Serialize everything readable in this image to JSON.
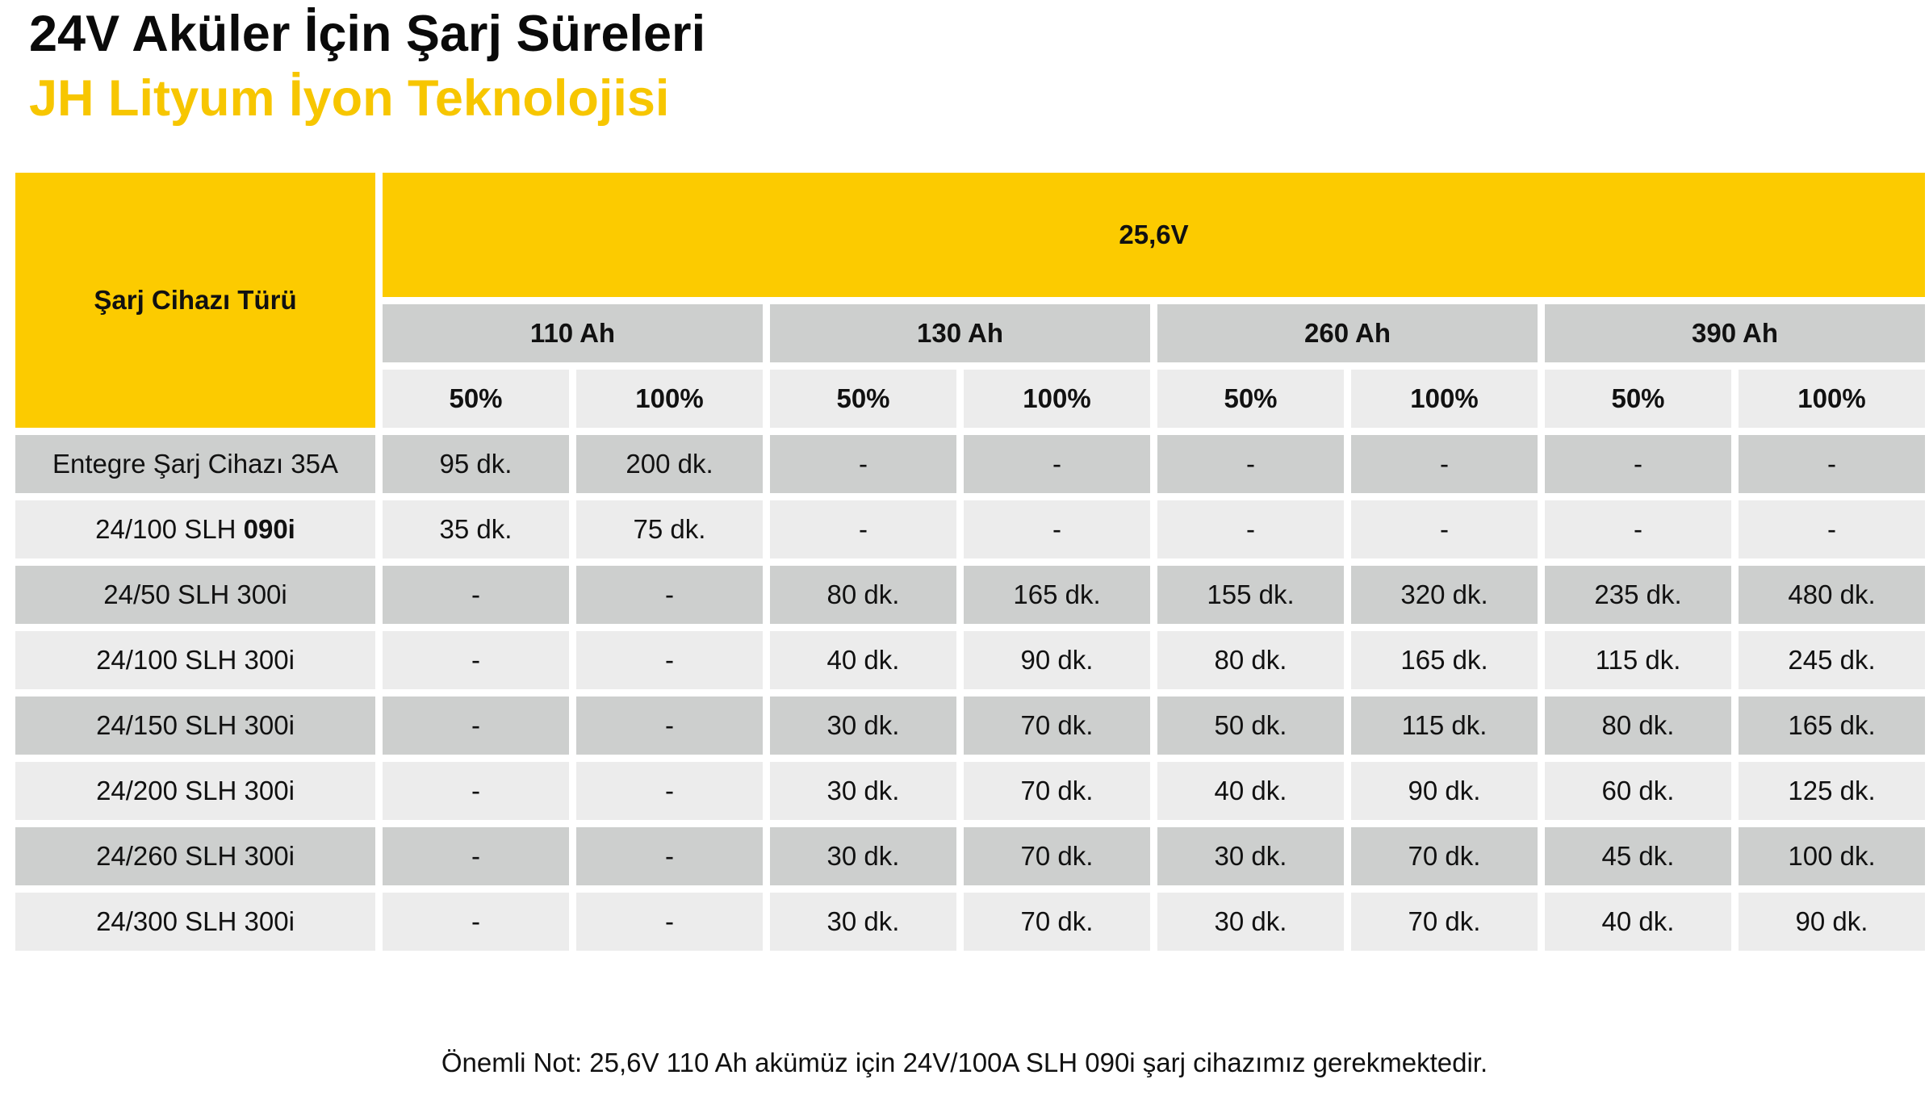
{
  "title": "24V Aküler İçin Şarj Süreleri",
  "subtitle": "JH Lityum İyon Teknolojisi",
  "table": {
    "corner_label": "Şarj Cihazı Türü",
    "voltage": "25,6V",
    "capacities": [
      "110 Ah",
      "130 Ah",
      "260 Ah",
      "390 Ah"
    ],
    "levels": [
      "50%",
      "100%",
      "50%",
      "100%",
      "50%",
      "100%",
      "50%",
      "100%"
    ],
    "rows": [
      {
        "charger": "Entegre Şarj Cihazı 35A",
        "charger_bold": "",
        "values": [
          "95 dk.",
          "200 dk.",
          "-",
          "-",
          "-",
          "-",
          "-",
          "-"
        ]
      },
      {
        "charger": "24/100 SLH ",
        "charger_bold": "090i",
        "values": [
          "35 dk.",
          "75 dk.",
          "-",
          "-",
          "-",
          "-",
          "-",
          "-"
        ]
      },
      {
        "charger": "24/50 SLH 300i",
        "charger_bold": "",
        "values": [
          "-",
          "-",
          "80 dk.",
          "165 dk.",
          "155 dk.",
          "320 dk.",
          "235 dk.",
          "480 dk."
        ]
      },
      {
        "charger": "24/100 SLH 300i",
        "charger_bold": "",
        "values": [
          "-",
          "-",
          "40 dk.",
          "90 dk.",
          "80 dk.",
          "165 dk.",
          "115 dk.",
          "245 dk."
        ]
      },
      {
        "charger": "24/150 SLH 300i",
        "charger_bold": "",
        "values": [
          "-",
          "-",
          "30 dk.",
          "70 dk.",
          "50 dk.",
          "115 dk.",
          "80 dk.",
          "165 dk."
        ]
      },
      {
        "charger": "24/200 SLH 300i",
        "charger_bold": "",
        "values": [
          "-",
          "-",
          "30 dk.",
          "70 dk.",
          "40 dk.",
          "90 dk.",
          "60 dk.",
          "125 dk."
        ]
      },
      {
        "charger": "24/260 SLH 300i",
        "charger_bold": "",
        "values": [
          "-",
          "-",
          "30 dk.",
          "70 dk.",
          "30 dk.",
          "70 dk.",
          "45 dk.",
          "100 dk."
        ]
      },
      {
        "charger": "24/300 SLH 300i",
        "charger_bold": "",
        "values": [
          "-",
          "-",
          "30 dk.",
          "70 dk.",
          "30 dk.",
          "70 dk.",
          "40 dk.",
          "90 dk."
        ]
      }
    ]
  },
  "note": "Önemli Not: 25,6V 110 Ah akümüz için 24V/100A SLH 090i şarj cihazımız gerekmektedir.",
  "colors": {
    "accent_yellow": "#fccb00",
    "subtitle_yellow": "#f7c600",
    "row_dark": "#cdcfce",
    "row_light": "#ececec"
  }
}
